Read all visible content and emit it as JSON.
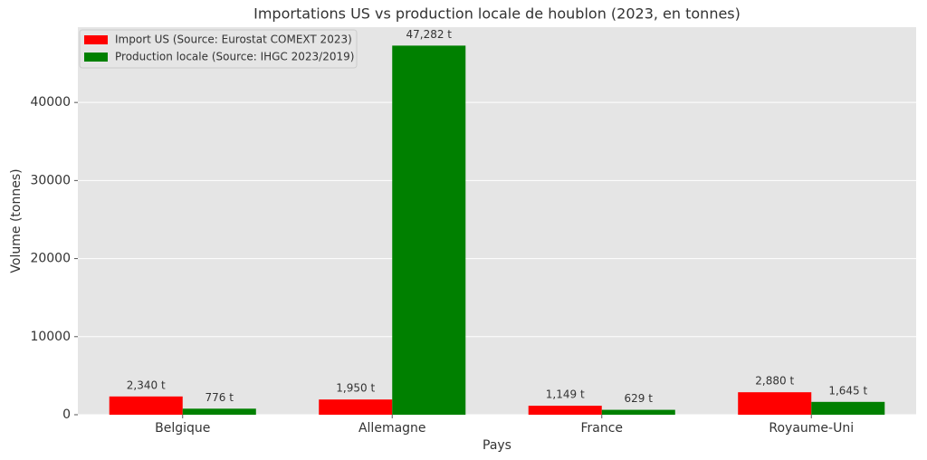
{
  "chart_data": {
    "type": "bar",
    "title": "Importations US vs production locale de houblon (2023, en tonnes)",
    "x_label": "Pays",
    "y_label": "Volume (tonnes)",
    "categories": [
      "Belgique",
      "Allemagne",
      "France",
      "Royaume-Uni"
    ],
    "series": [
      {
        "name": "Import US (Source: Eurostat COMEXT 2023)",
        "color": "#ff0000",
        "values": [
          2340,
          1950,
          1149,
          2880
        ],
        "value_labels": [
          "2,340 t",
          "1,950 t",
          "1,149 t",
          "2,880 t"
        ]
      },
      {
        "name": "Production locale (Source: IHGC 2023/2019)",
        "color": "#008000",
        "values": [
          776,
          47282,
          629,
          1645
        ],
        "value_labels": [
          "776 t",
          "47,282 t",
          "629 t",
          "1,645 t"
        ]
      }
    ],
    "ylim": [
      0,
      49646
    ],
    "yticks": [
      0,
      10000,
      20000,
      30000,
      40000
    ],
    "grid": true,
    "legend": "upper-left"
  }
}
